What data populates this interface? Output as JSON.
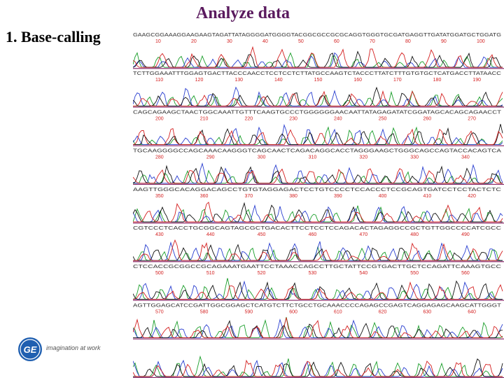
{
  "title": "Analyze data",
  "subtitle": "1.  Base-calling",
  "logo": {
    "brand": "GE",
    "tagline": "imagination at work"
  },
  "chromatogram": {
    "rows": [
      {
        "sequence": "GAAGCGGAAAGGAAGAAGTAGATTATAGGGGATGGGGTACGGCGCCGCGCAGGTGGGTGCGATGAGGTTGATATGGATGCTGGATG",
        "ticks": [
          "10",
          "20",
          "30",
          "40",
          "50",
          "60",
          "70",
          "80",
          "90",
          "100"
        ]
      },
      {
        "sequence": "TCTTGGAAATTTGGAGTGACTTACCCAACCTCCTCCTCTTATGCCAAGTCTACCCTTATCTTTGTGTGCTCATGACCTTATAACC",
        "ticks": [
          "110",
          "120",
          "130",
          "140",
          "150",
          "160",
          "170",
          "180",
          "190"
        ]
      },
      {
        "sequence": "CAGCAGAAGCTAACTGGCAAATTGTTTCAAGTGCCCTGGGGGGAACAATTATAGAGATATCGGATAGCACAGCAGAACCT",
        "ticks": [
          "200",
          "210",
          "220",
          "230",
          "240",
          "250",
          "260",
          "270"
        ]
      },
      {
        "sequence": "TGCAAGGGGCCAGCAAACAAGGGTCAGCAACTCAGACAGGCACCTAGGGAAGCTGGGCAGCCAGTACCACAGTCA",
        "ticks": [
          "280",
          "290",
          "300",
          "310",
          "320",
          "330",
          "340"
        ]
      },
      {
        "sequence": "AAGTTGGGCACAGGACAGCCTGTGTAGGAGACTCCTGTCCCCTCCACCCTCCGCAGTGATCCTCCTACTCTC",
        "ticks": [
          "350",
          "360",
          "370",
          "380",
          "390",
          "400",
          "410",
          "420"
        ]
      },
      {
        "sequence": "CGTCCCTCACCTGCGGCAGTAGCGCTGACACTTCCTCCTCCAGACACTAGAGGCCGCTGTTGGCCCCATCGCC",
        "ticks": [
          "430",
          "440",
          "450",
          "460",
          "470",
          "480",
          "490"
        ]
      },
      {
        "sequence": "CTCCACCGCGGCCGCAGAAATGAATTCCTAAACCAGCCTTGCTATTCCGTGACTTGCTCCAGATTCAAAGTGCC",
        "ticks": [
          "500",
          "510",
          "520",
          "530",
          "540",
          "550",
          "560"
        ]
      },
      {
        "sequence": "AGTTGGAGCATCCGATTGGCGGAGCTCATGTCTTCTGCCTGCAAACCCCAGAGCCGAGTCAGGAGAGCAAGCATTGGGT",
        "ticks": [
          "570",
          "580",
          "590",
          "600",
          "610",
          "620",
          "630",
          "640"
        ]
      },
      {
        "sequence": "",
        "ticks": []
      }
    ]
  },
  "colors": {
    "title": "#5a1a5e",
    "traceA": "#1a9e2a",
    "traceC": "#2a3fd0",
    "traceG": "#111111",
    "traceT": "#d42020",
    "tick": "#d42020",
    "bar": "#8a2a6a",
    "logo": "#1f5fb0"
  }
}
